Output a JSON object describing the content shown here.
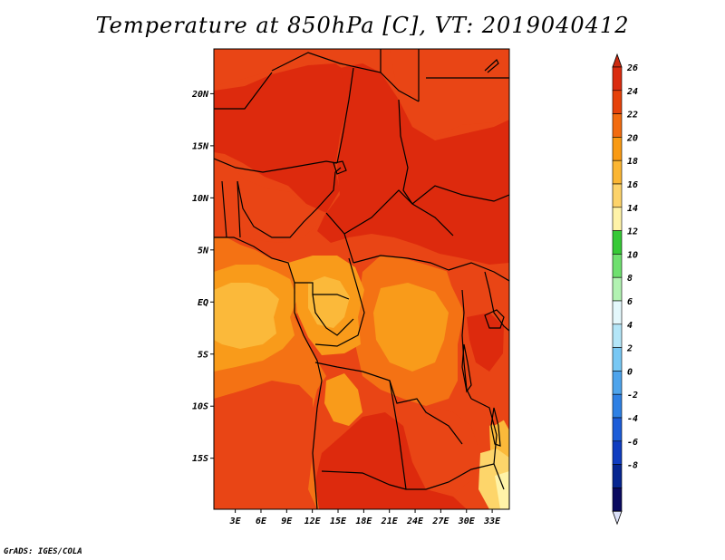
{
  "title": "Temperature at 850hPa [C], VT: 2019040412",
  "credit": "GrADS: IGES/COLA",
  "map": {
    "lat_labels": [
      "20N",
      "15N",
      "10N",
      "5N",
      "EQ",
      "5S",
      "10S",
      "15S"
    ],
    "lat_values": [
      20,
      15,
      10,
      5,
      0,
      -5,
      -10,
      -15
    ],
    "lon_labels": [
      "3E",
      "6E",
      "9E",
      "12E",
      "15E",
      "18E",
      "21E",
      "24E",
      "27E",
      "30E",
      "33E"
    ],
    "lon_values": [
      3,
      6,
      9,
      12,
      15,
      18,
      21,
      24,
      27,
      30,
      33
    ],
    "lon_range": [
      0.5,
      35
    ],
    "lat_range": [
      -19.9,
      24.3
    ]
  },
  "colorbar": {
    "labels": [
      "26",
      "24",
      "22",
      "20",
      "18",
      "16",
      "14",
      "12",
      "10",
      "8",
      "6",
      "4",
      "2",
      "0",
      "-2",
      "-4",
      "-6",
      "-8"
    ],
    "colors": [
      "#da2b0f",
      "#e6420a",
      "#f26b0f",
      "#f99a13",
      "#fbb633",
      "#fdd36a",
      "#fff3a8",
      "#36c936",
      "#6fe06f",
      "#b2f2b2",
      "#e4f8fc",
      "#b4e6f8",
      "#78c8f4",
      "#4ea4ec",
      "#2e80e4",
      "#1c5cd8",
      "#0f3cc0",
      "#062590",
      "#0a0a60"
    ],
    "top_triangle_color": "#cc2a10",
    "bottom_triangle_color": "#dce1f8"
  },
  "field_colors": {
    "over24": "#dd2a0d",
    "c22": "#e94515",
    "c20": "#f47214",
    "c18": "#f99b1a",
    "c16": "#fbb93a",
    "c14": "#fdd56a",
    "c12": "#fff3a8"
  }
}
